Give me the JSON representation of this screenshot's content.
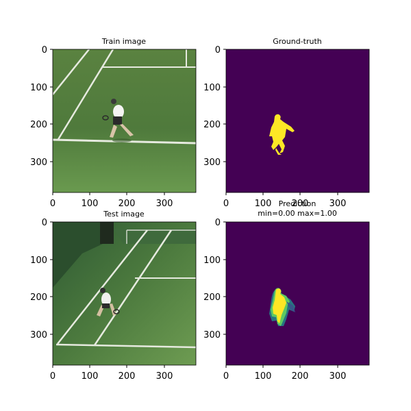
{
  "figure": {
    "panels": [
      {
        "id": "train",
        "title": [
          "Train image"
        ],
        "type": "image"
      },
      {
        "id": "gt",
        "title": [
          "Ground-truth"
        ],
        "type": "mask"
      },
      {
        "id": "test",
        "title": [
          "Test image"
        ],
        "type": "image"
      },
      {
        "id": "pred",
        "title": [
          "Prediction",
          "min=0.00 max=1.00"
        ],
        "type": "prediction"
      }
    ],
    "x_ticks": [
      "0",
      "100",
      "200",
      "300"
    ],
    "y_ticks": [
      "0",
      "100",
      "200",
      "300"
    ],
    "colors": {
      "mask_background": "#440154",
      "mask_foreground": "#fde725",
      "court_green": "#5d8a46",
      "court_dark": "#3b6b3a",
      "court_lines": "#e8ece2"
    }
  }
}
